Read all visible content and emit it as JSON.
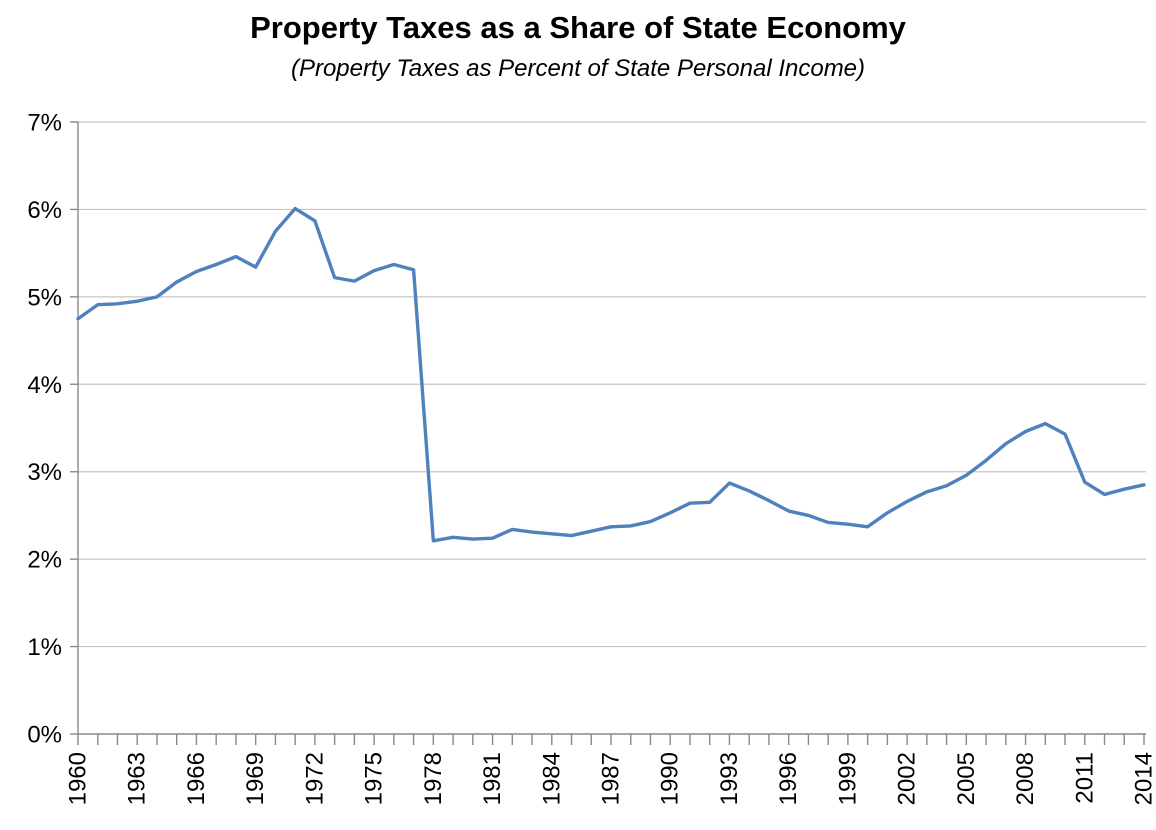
{
  "title": "Property Taxes as a Share of State Economy",
  "subtitle": "(Property Taxes as Percent of State Personal Income)",
  "chart_data": {
    "type": "line",
    "title": "Property Taxes as a Share of State Economy",
    "subtitle": "(Property Taxes as Percent of State Personal Income)",
    "xlabel": "",
    "ylabel": "",
    "x": [
      1960,
      1961,
      1962,
      1963,
      1964,
      1965,
      1966,
      1967,
      1968,
      1969,
      1970,
      1971,
      1972,
      1973,
      1974,
      1975,
      1976,
      1977,
      1978,
      1979,
      1980,
      1981,
      1982,
      1983,
      1984,
      1985,
      1986,
      1987,
      1988,
      1989,
      1990,
      1991,
      1992,
      1993,
      1994,
      1995,
      1996,
      1997,
      1998,
      1999,
      2000,
      2001,
      2002,
      2003,
      2004,
      2005,
      2006,
      2007,
      2008,
      2009,
      2010,
      2011,
      2012,
      2013,
      2014
    ],
    "series": [
      {
        "name": "Property taxes as percent of state personal income",
        "values": [
          4.75,
          4.91,
          4.92,
          4.95,
          5.0,
          5.17,
          5.29,
          5.37,
          5.46,
          5.34,
          5.75,
          6.01,
          5.87,
          5.22,
          5.18,
          5.3,
          5.37,
          5.31,
          2.21,
          2.25,
          2.23,
          2.24,
          2.34,
          2.31,
          2.29,
          2.27,
          2.32,
          2.37,
          2.38,
          2.43,
          2.53,
          2.64,
          2.65,
          2.87,
          2.78,
          2.67,
          2.55,
          2.5,
          2.42,
          2.4,
          2.37,
          2.53,
          2.66,
          2.77,
          2.84,
          2.96,
          3.13,
          3.32,
          3.46,
          3.55,
          3.43,
          2.88,
          2.74,
          2.8,
          2.85
        ]
      }
    ],
    "ylim": [
      0,
      7
    ],
    "ytick_labels": [
      "0%",
      "1%",
      "2%",
      "3%",
      "4%",
      "5%",
      "6%",
      "7%"
    ],
    "xtick_label_every": 3,
    "grid": "horizontal",
    "legend": "none",
    "line_color": "#4F81BD",
    "gridline_color": "#C6C6C6",
    "axis_color": "#898989",
    "text_color": "#000000"
  }
}
